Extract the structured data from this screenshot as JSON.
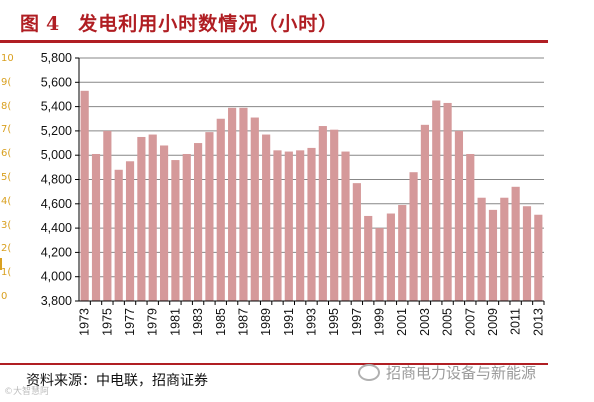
{
  "header": {
    "figure_label": "图",
    "figure_number": "4",
    "title": "发电利用小时数情况（小时）"
  },
  "source_text": "资料来源：中电联，招商证券",
  "watermark": {
    "icon": "wechat-icon",
    "text": "招商电力设备与新能源",
    "small": "©大智慧阿"
  },
  "left_cut_ticks": [
    "10",
    "9(",
    "8(",
    "7(",
    "6(",
    "5(",
    "4(",
    "3(",
    "2(",
    "1(",
    "0"
  ],
  "colors": {
    "bar": "#d5999a",
    "accent": "#b01e23",
    "grid": "#878787"
  },
  "chart_data": {
    "type": "bar",
    "title": "发电利用小时数情况（小时）",
    "xlabel": "",
    "ylabel": "",
    "ylim": [
      3800,
      5800
    ],
    "yticks": [
      3800,
      4000,
      4200,
      4400,
      4600,
      4800,
      5000,
      5200,
      5400,
      5600,
      5800
    ],
    "ytick_labels": [
      "3,800",
      "4,000",
      "4,200",
      "4,400",
      "4,600",
      "4,800",
      "5,000",
      "5,200",
      "5,400",
      "5,600",
      "5,800"
    ],
    "grid": true,
    "categories": [
      "1973",
      "1974",
      "1975",
      "1976",
      "1977",
      "1978",
      "1979",
      "1980",
      "1981",
      "1982",
      "1983",
      "1984",
      "1985",
      "1986",
      "1987",
      "1988",
      "1989",
      "1990",
      "1991",
      "1992",
      "1993",
      "1994",
      "1995",
      "1996",
      "1997",
      "1998",
      "1999",
      "2000",
      "2001",
      "2002",
      "2003",
      "2004",
      "2005",
      "2006",
      "2007",
      "2008",
      "2009",
      "2010",
      "2011",
      "2012",
      "2013"
    ],
    "xtick_labels": [
      "1973",
      "1975",
      "1977",
      "1979",
      "1981",
      "1983",
      "1985",
      "1987",
      "1989",
      "1991",
      "1993",
      "1995",
      "1997",
      "1999",
      "2001",
      "2003",
      "2005",
      "2007",
      "2009",
      "2011",
      "2013"
    ],
    "values": [
      5530,
      5010,
      5200,
      4880,
      4950,
      5150,
      5170,
      5080,
      4960,
      5010,
      5100,
      5190,
      5300,
      5390,
      5390,
      5310,
      5170,
      5040,
      5030,
      5040,
      5060,
      5240,
      5210,
      5030,
      4770,
      4500,
      4400,
      4520,
      4590,
      4860,
      5250,
      5450,
      5430,
      5200,
      5010,
      4650,
      4550,
      4650,
      4740,
      4580,
      4510
    ]
  }
}
